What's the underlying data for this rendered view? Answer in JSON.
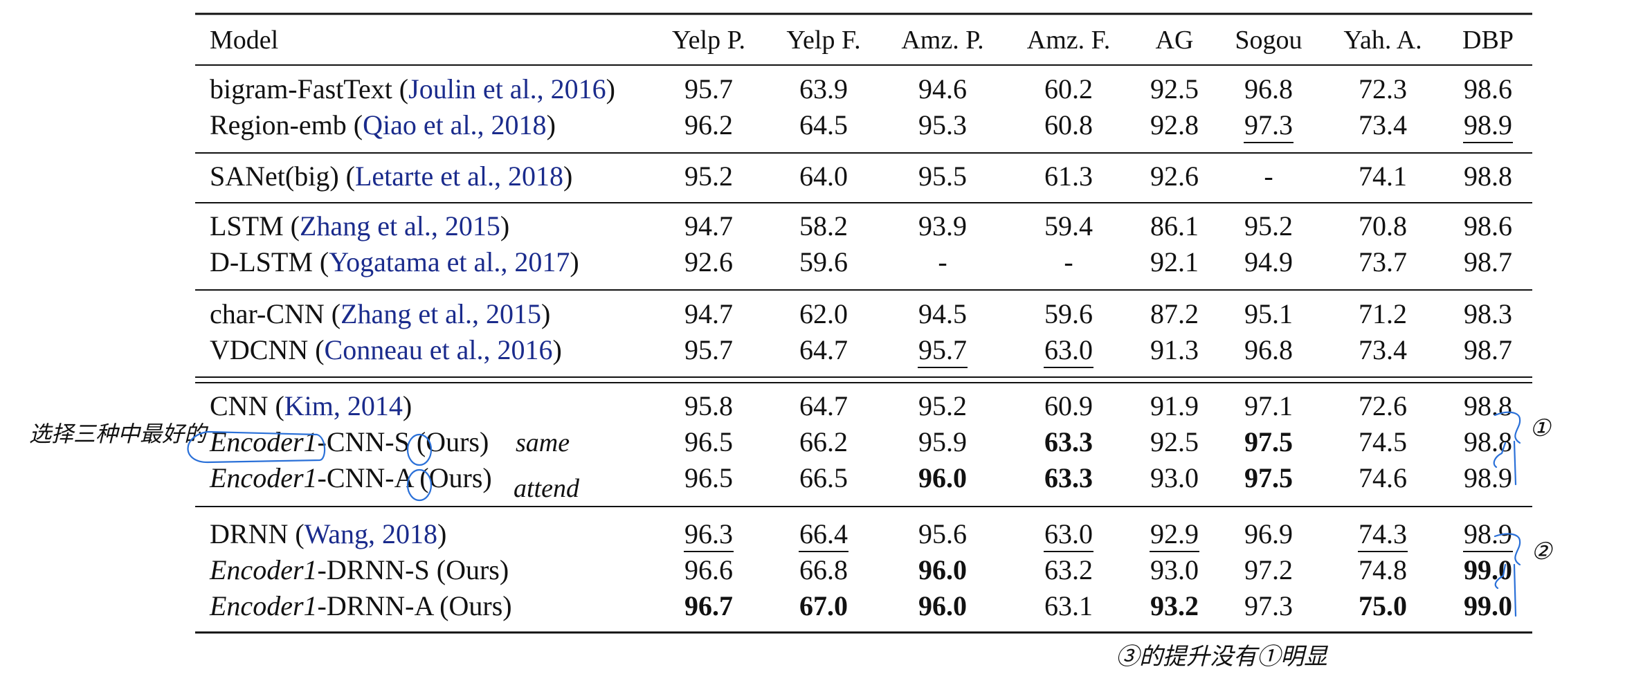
{
  "columns": [
    "Model",
    "Yelp P.",
    "Yelp F.",
    "Amz. P.",
    "Amz. F.",
    "AG",
    "Sogou",
    "Yah. A.",
    "DBP"
  ],
  "groups": [
    [
      {
        "model": [
          {
            "t": "bigram-FastText ("
          },
          {
            "t": "Joulin et al., 2016",
            "cite": true
          },
          {
            "t": ")"
          }
        ],
        "values": [
          "95.7",
          "63.9",
          "94.6",
          "60.2",
          "92.5",
          "96.8",
          "72.3",
          "98.6"
        ],
        "bold": [],
        "underline": []
      },
      {
        "model": [
          {
            "t": "Region-emb ("
          },
          {
            "t": "Qiao et al., 2018",
            "cite": true
          },
          {
            "t": ")"
          }
        ],
        "values": [
          "96.2",
          "64.5",
          "95.3",
          "60.8",
          "92.8",
          "97.3",
          "73.4",
          "98.9"
        ],
        "bold": [],
        "underline": [
          5,
          7
        ]
      }
    ],
    [
      {
        "model": [
          {
            "t": "SANet(big) ("
          },
          {
            "t": "Letarte et al., 2018",
            "cite": true
          },
          {
            "t": ")"
          }
        ],
        "values": [
          "95.2",
          "64.0",
          "95.5",
          "61.3",
          "92.6",
          "-",
          "74.1",
          "98.8"
        ],
        "bold": [],
        "underline": []
      }
    ],
    [
      {
        "model": [
          {
            "t": "LSTM ("
          },
          {
            "t": "Zhang et al., 2015",
            "cite": true
          },
          {
            "t": ")"
          }
        ],
        "values": [
          "94.7",
          "58.2",
          "93.9",
          "59.4",
          "86.1",
          "95.2",
          "70.8",
          "98.6"
        ],
        "bold": [],
        "underline": []
      },
      {
        "model": [
          {
            "t": "D-LSTM ("
          },
          {
            "t": "Yogatama et al., 2017",
            "cite": true
          },
          {
            "t": ")"
          }
        ],
        "values": [
          "92.6",
          "59.6",
          "-",
          "-",
          "92.1",
          "94.9",
          "73.7",
          "98.7"
        ],
        "bold": [],
        "underline": []
      }
    ],
    [
      {
        "model": [
          {
            "t": "char-CNN ("
          },
          {
            "t": "Zhang et al., 2015",
            "cite": true
          },
          {
            "t": ")"
          }
        ],
        "values": [
          "94.7",
          "62.0",
          "94.5",
          "59.6",
          "87.2",
          "95.1",
          "71.2",
          "98.3"
        ],
        "bold": [],
        "underline": []
      },
      {
        "model": [
          {
            "t": "VDCNN ("
          },
          {
            "t": "Conneau et al., 2016",
            "cite": true
          },
          {
            "t": ")"
          }
        ],
        "values": [
          "95.7",
          "64.7",
          "95.7",
          "63.0",
          "91.3",
          "96.8",
          "73.4",
          "98.7"
        ],
        "bold": [],
        "underline": [
          2,
          3
        ]
      }
    ],
    [
      {
        "model": [
          {
            "t": "CNN ("
          },
          {
            "t": "Kim, 2014",
            "cite": true
          },
          {
            "t": ")"
          }
        ],
        "values": [
          "95.8",
          "64.7",
          "95.2",
          "60.9",
          "91.9",
          "97.1",
          "72.6",
          "98.8"
        ],
        "bold": [],
        "underline": []
      },
      {
        "model": [
          {
            "t": "Encoder1",
            "italic": true
          },
          {
            "t": "-CNN-S (Ours)"
          }
        ],
        "values": [
          "96.5",
          "66.2",
          "95.9",
          "63.3",
          "92.5",
          "97.5",
          "74.5",
          "98.8"
        ],
        "bold": [
          3,
          5
        ],
        "underline": []
      },
      {
        "model": [
          {
            "t": "Encoder1",
            "italic": true
          },
          {
            "t": "-CNN-A (Ours)"
          }
        ],
        "values": [
          "96.5",
          "66.5",
          "96.0",
          "63.3",
          "93.0",
          "97.5",
          "74.6",
          "98.9"
        ],
        "bold": [
          2,
          3,
          5
        ],
        "underline": []
      }
    ],
    [
      {
        "model": [
          {
            "t": "DRNN ("
          },
          {
            "t": "Wang, 2018",
            "cite": true
          },
          {
            "t": ")"
          }
        ],
        "values": [
          "96.3",
          "66.4",
          "95.6",
          "63.0",
          "92.9",
          "96.9",
          "74.3",
          "98.9"
        ],
        "bold": [],
        "underline": [
          0,
          1,
          3,
          4,
          6,
          7
        ]
      },
      {
        "model": [
          {
            "t": "Encoder1",
            "italic": true
          },
          {
            "t": "-DRNN-S (Ours)"
          }
        ],
        "values": [
          "96.6",
          "66.8",
          "96.0",
          "63.2",
          "93.0",
          "97.2",
          "74.8",
          "99.0"
        ],
        "bold": [
          2,
          7
        ],
        "underline": []
      },
      {
        "model": [
          {
            "t": "Encoder1",
            "italic": true
          },
          {
            "t": "-DRNN-A (Ours)"
          }
        ],
        "values": [
          "96.7",
          "67.0",
          "96.0",
          "63.1",
          "93.2",
          "97.3",
          "75.0",
          "99.0"
        ],
        "bold": [
          0,
          1,
          2,
          4,
          6,
          7
        ],
        "underline": []
      }
    ]
  ],
  "annotations": {
    "left_note": "选择三种中最好的",
    "same_note": "same",
    "attend_note": "attend",
    "bottom_note": "③的提升没有①明显",
    "circle_1": "①",
    "circle_2": "②"
  },
  "colors": {
    "citation": "#1a2b8c",
    "annotation": "#2a70d8"
  }
}
